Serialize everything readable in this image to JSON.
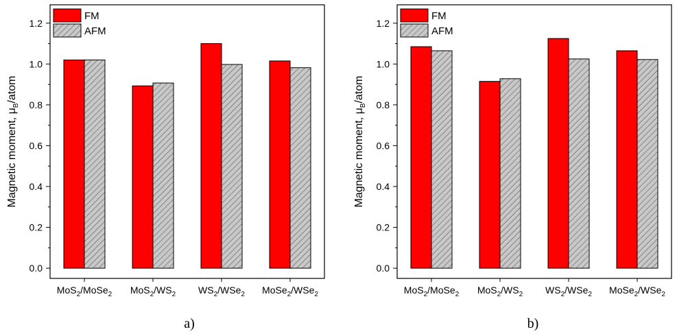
{
  "chart_data": [
    {
      "type": "bar",
      "panel_label": "a)",
      "categories": [
        {
          "main": "MoS",
          "sub1": "2",
          "mid": "/MoSe",
          "sub2": "2"
        },
        {
          "main": "MoS",
          "sub1": "2",
          "mid": "/WS",
          "sub2": "2"
        },
        {
          "main": "WS",
          "sub1": "2",
          "mid": "/WSe",
          "sub2": "2"
        },
        {
          "main": "MoSe",
          "sub1": "2",
          "mid": "/WSe",
          "sub2": "2"
        }
      ],
      "series": [
        {
          "name": "FM",
          "values": [
            1.02,
            0.893,
            1.1,
            1.015
          ],
          "color": "#ff0000",
          "pattern": "solid"
        },
        {
          "name": "AFM",
          "values": [
            1.02,
            0.907,
            0.998,
            0.982
          ],
          "color": "#c0c0c0",
          "pattern": "hatch"
        }
      ],
      "ylabel": {
        "main": "Magnetic moment, μ",
        "sub": "B",
        "after": "/atom"
      },
      "ylim": [
        -0.05,
        1.29
      ],
      "yticks": [
        "0.0",
        "0.2",
        "0.4",
        "0.6",
        "0.8",
        "1.0",
        "1.2"
      ],
      "grid": false,
      "legend": "top-left"
    },
    {
      "type": "bar",
      "panel_label": "b)",
      "categories": [
        {
          "main": "MoS",
          "sub1": "2",
          "mid": "/MoSe",
          "sub2": "2"
        },
        {
          "main": "MoS",
          "sub1": "2",
          "mid": "/WS",
          "sub2": "2"
        },
        {
          "main": "WS",
          "sub1": "2",
          "mid": "/WSe",
          "sub2": "2"
        },
        {
          "main": "MoSe",
          "sub1": "2",
          "mid": "/WSe",
          "sub2": "2"
        }
      ],
      "series": [
        {
          "name": "FM",
          "values": [
            1.085,
            0.915,
            1.125,
            1.065
          ],
          "color": "#ff0000",
          "pattern": "solid"
        },
        {
          "name": "AFM",
          "values": [
            1.065,
            0.928,
            1.025,
            1.022
          ],
          "color": "#c0c0c0",
          "pattern": "hatch"
        }
      ],
      "ylabel": {
        "main": "Magnetic moment, μ",
        "sub": "B",
        "after": "/atom"
      },
      "ylim": [
        -0.05,
        1.29
      ],
      "yticks": [
        "0.0",
        "0.2",
        "0.4",
        "0.6",
        "0.8",
        "1.0",
        "1.2"
      ],
      "grid": false,
      "legend": "top-left"
    }
  ]
}
